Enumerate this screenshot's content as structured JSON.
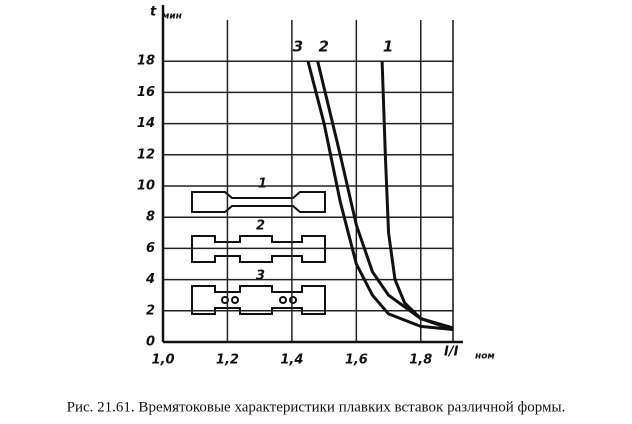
{
  "chart_data": {
    "type": "line",
    "y_label": "t",
    "y_unit": "мин",
    "x_label": "I/I",
    "x_unit": "ном",
    "caption": "Рис. 21.61. Времятоковые характеристики плавких вставок различной формы.",
    "xlim": [
      1.0,
      1.9
    ],
    "ylim": [
      0,
      20
    ],
    "xticks": [
      {
        "value": 1.0,
        "label": "1,0"
      },
      {
        "value": 1.2,
        "label": "1,2"
      },
      {
        "value": 1.4,
        "label": "1,4"
      },
      {
        "value": 1.6,
        "label": "1,6"
      },
      {
        "value": 1.8,
        "label": "1,8"
      }
    ],
    "yticks": [
      0,
      2,
      4,
      6,
      8,
      10,
      12,
      14,
      16,
      18
    ],
    "grid": true,
    "series": [
      {
        "name": "1",
        "color": "#111111",
        "x": [
          1.68,
          1.69,
          1.7,
          1.72,
          1.75,
          1.8,
          1.9
        ],
        "values": [
          18,
          12,
          7,
          4,
          2.5,
          1.5,
          0.9
        ]
      },
      {
        "name": "2",
        "color": "#111111",
        "x": [
          1.48,
          1.55,
          1.6,
          1.65,
          1.7,
          1.8,
          1.9
        ],
        "values": [
          18,
          12,
          7.5,
          4.5,
          3,
          1.5,
          0.8
        ]
      },
      {
        "name": "3",
        "color": "#111111",
        "x": [
          1.45,
          1.5,
          1.55,
          1.6,
          1.65,
          1.7,
          1.8,
          1.9
        ],
        "values": [
          18,
          14,
          9,
          5,
          3,
          1.8,
          1,
          0.8
        ]
      }
    ]
  }
}
